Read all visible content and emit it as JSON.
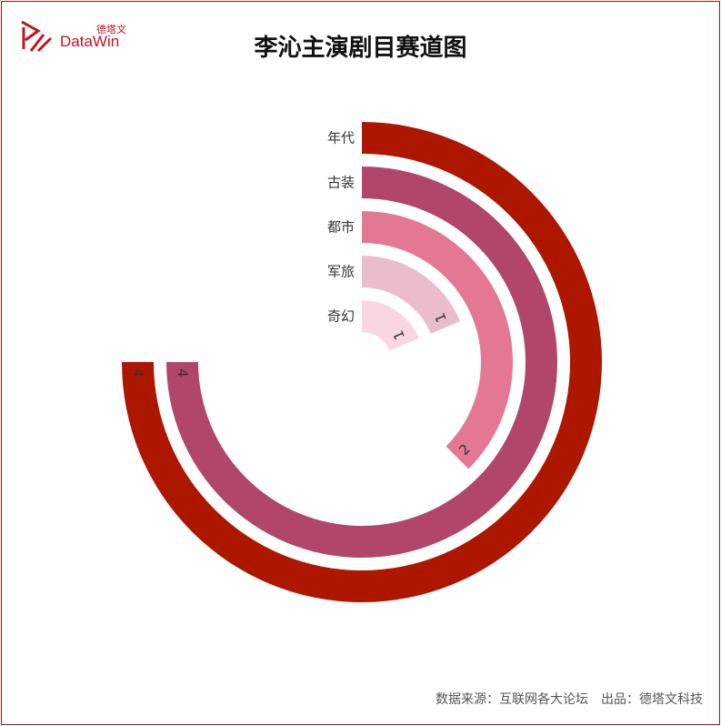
{
  "logo": {
    "cn": "德塔文",
    "en": "DataWin"
  },
  "title": "李沁主演剧目赛道图",
  "footer": "数据来源：互联网各大论坛　出品：德塔文科技",
  "chart_data": {
    "type": "radial-bar",
    "title": "李沁主演剧目赛道图",
    "categories": [
      "年代",
      "古装",
      "都市",
      "军旅",
      "奇幻"
    ],
    "values": [
      4,
      4,
      2,
      1,
      1
    ],
    "colors": [
      "#ad1700",
      "#b2466a",
      "#e47894",
      "#ebbccb",
      "#f8d7e1"
    ],
    "max_angle_value": 5.333
  }
}
